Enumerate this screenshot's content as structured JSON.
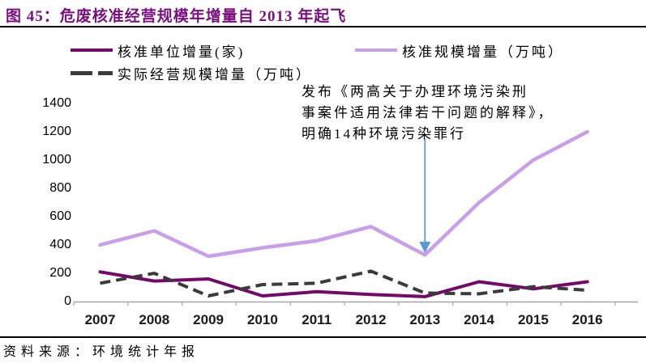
{
  "header": {
    "title": "图 45：危废核准经营规模年增量自 2013 年起飞"
  },
  "annotation": {
    "lines": [
      "发布《两高关于办理环境污染刑",
      "事案件适用法律若干问题的解释》，",
      "明确14种环境污染罪行"
    ]
  },
  "footer": {
    "source": "资料来源：环境统计年报"
  },
  "colors": {
    "title": "#78107E",
    "divider": "#000000",
    "axis": "#A6A6A6",
    "arrow": "#5B9BD5",
    "text": "#000000"
  },
  "chart_data": {
    "type": "line",
    "title": "危废核准经营规模年增量自 2013 年起飞",
    "categories": [
      "2007",
      "2008",
      "2009",
      "2010",
      "2011",
      "2012",
      "2013",
      "2014",
      "2015",
      "2016"
    ],
    "series": [
      {
        "name": "核准单位增量(家)",
        "color": "#76076B",
        "line_style": "solid",
        "values": [
          210,
          145,
          160,
          40,
          70,
          50,
          35,
          140,
          90,
          140
        ]
      },
      {
        "name": "核准规模增量（万吨）",
        "color": "#C9A0E8",
        "line_style": "solid",
        "values": [
          400,
          500,
          320,
          380,
          430,
          530,
          330,
          700,
          1000,
          1200
        ]
      },
      {
        "name": "实际经营规模增量（万吨）",
        "color": "#3B3B3B",
        "line_style": "dashed",
        "values": [
          130,
          200,
          40,
          120,
          130,
          215,
          60,
          55,
          105,
          80
        ]
      }
    ],
    "xlabel": "",
    "ylabel": "",
    "ylim": [
      0,
      1400
    ],
    "ytick_step": 200,
    "grid": false,
    "legend_position": "top",
    "annotation_text": "发布《两高关于办理环境污染刑事案件适用法律若干问题的解释》，明确14种环境污染罪行",
    "annotation_arrow_target": "2013"
  }
}
